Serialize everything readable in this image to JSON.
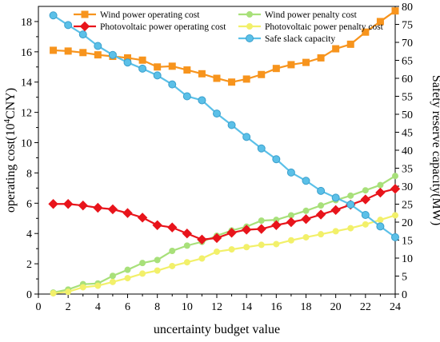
{
  "chart_data": {
    "type": "line",
    "xlabel": "uncertainty budget value",
    "ylabel_left": "operating cost(10^4CNY)",
    "ylabel_right": "Safety reserve capacity(MW)",
    "x_ticks": [
      0,
      2,
      4,
      6,
      8,
      10,
      12,
      14,
      16,
      18,
      20,
      22,
      24
    ],
    "y_left_ticks": [
      0,
      2,
      4,
      6,
      8,
      10,
      12,
      14,
      16,
      18
    ],
    "y_right_ticks": [
      0,
      5,
      10,
      15,
      20,
      25,
      30,
      35,
      40,
      45,
      50,
      55,
      60,
      65,
      70,
      75,
      80
    ],
    "xlim": [
      0,
      24
    ],
    "ylim_left": [
      0,
      19
    ],
    "ylim_right": [
      0,
      80
    ],
    "x": [
      1,
      2,
      3,
      4,
      5,
      6,
      7,
      8,
      9,
      10,
      11,
      12,
      13,
      14,
      15,
      16,
      17,
      18,
      19,
      20,
      21,
      22,
      23,
      24
    ],
    "series": [
      {
        "name": "Wind power operating cost",
        "axis": "left",
        "color": "#F7941D",
        "marker": "square",
        "values": [
          16.1,
          16.05,
          15.95,
          15.8,
          15.7,
          15.6,
          15.45,
          15.0,
          15.05,
          14.8,
          14.55,
          14.25,
          14.0,
          14.2,
          14.5,
          14.9,
          15.15,
          15.3,
          15.6,
          16.2,
          16.5,
          17.3,
          18.0,
          18.7
        ]
      },
      {
        "name": "Photovoltaic power operating cost",
        "axis": "left",
        "color": "#E8141B",
        "marker": "diamond",
        "values": [
          5.95,
          5.95,
          5.85,
          5.7,
          5.6,
          5.35,
          5.05,
          4.55,
          4.4,
          4.0,
          3.6,
          3.7,
          4.05,
          4.25,
          4.3,
          4.55,
          4.75,
          4.95,
          5.25,
          5.55,
          5.9,
          6.25,
          6.7,
          6.95
        ]
      },
      {
        "name": "Wind power penalty cost",
        "axis": "left",
        "color": "#A8E07A",
        "marker": "circle",
        "values": [
          0.1,
          0.3,
          0.65,
          0.7,
          1.2,
          1.6,
          2.05,
          2.25,
          2.85,
          3.2,
          3.45,
          3.85,
          4.2,
          4.45,
          4.85,
          4.9,
          5.2,
          5.5,
          5.85,
          6.2,
          6.5,
          6.85,
          7.2,
          7.8
        ]
      },
      {
        "name": "Photovoltaic power penalty cost",
        "axis": "left",
        "color": "#F2F06A",
        "marker": "circle",
        "values": [
          0.05,
          0.15,
          0.45,
          0.55,
          0.8,
          1.05,
          1.35,
          1.55,
          1.85,
          2.1,
          2.35,
          2.8,
          2.95,
          3.1,
          3.25,
          3.3,
          3.55,
          3.75,
          3.95,
          4.15,
          4.35,
          4.6,
          4.9,
          5.2
        ]
      },
      {
        "name": "Safe slack capacity",
        "axis": "right",
        "color": "#5BC0E8",
        "marker": "circle",
        "values": [
          77.5,
          74.8,
          72.2,
          69.0,
          66.5,
          64.4,
          62.7,
          60.8,
          58.3,
          55.0,
          53.9,
          50.2,
          47.0,
          43.7,
          40.5,
          37.5,
          33.8,
          31.5,
          28.7,
          26.8,
          24.9,
          22.0,
          18.8,
          15.8
        ]
      }
    ],
    "legend_position": "top",
    "grid": false
  }
}
